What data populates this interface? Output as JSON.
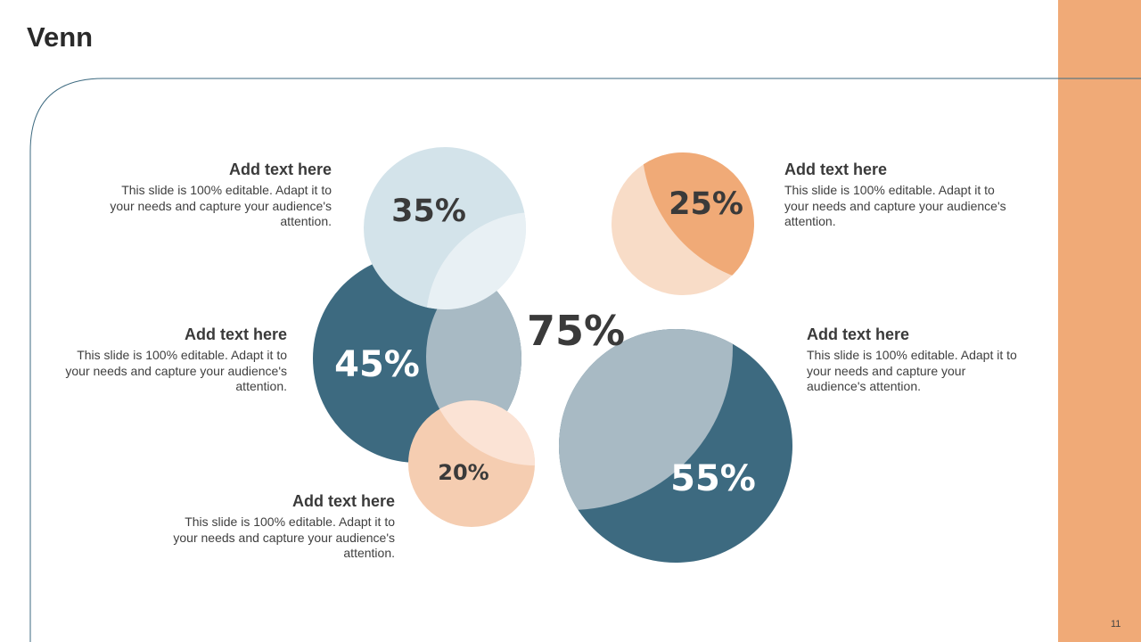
{
  "slide": {
    "title": "Venn",
    "page_number": "11"
  },
  "colors": {
    "accent_orange": "#f0aa77",
    "dark_teal": "#3d6a80",
    "light_blue": "#d3e3ea",
    "light_peach": "#f5cdb1",
    "grey_blue": "#a8bac4",
    "pale_orange": "#f8dcc7",
    "line_color": "#3d6a80"
  },
  "circles": {
    "c35": {
      "value": "35%"
    },
    "c45": {
      "value": "45%"
    },
    "c20": {
      "value": "20%"
    },
    "c25": {
      "value": "25%"
    },
    "c55": {
      "value": "55%"
    },
    "center": {
      "value": "75%"
    }
  },
  "text_blocks": [
    {
      "heading": "Add text here",
      "body": "This slide is 100% editable. Adapt it to your needs and capture your audience's attention."
    },
    {
      "heading": "Add text here",
      "body": "This slide is 100% editable. Adapt it to your needs and capture your audience's attention."
    },
    {
      "heading": "Add text here",
      "body": "This slide is 100% editable. Adapt it to your needs and capture your audience's attention."
    },
    {
      "heading": "Add text here",
      "body": "This slide is 100% editable. Adapt it to your needs and capture your audience's attention."
    },
    {
      "heading": "Add text here",
      "body": "This slide is 100% editable. Adapt it to your needs and capture your audience's attention."
    }
  ]
}
